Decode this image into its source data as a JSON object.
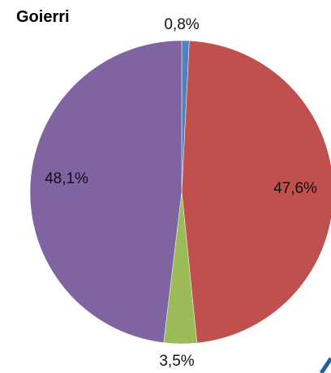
{
  "chart_data": {
    "type": "pie",
    "title": "Goierri",
    "slices": [
      {
        "label": "0,8%",
        "value": 0.8,
        "color": "#4F81BD"
      },
      {
        "label": "47,6%",
        "value": 47.6,
        "color": "#C0504D"
      },
      {
        "label": "3,5%",
        "value": 3.5,
        "color": "#9BBB59"
      },
      {
        "label": "48,1%",
        "value": 48.1,
        "color": "#8064A2"
      }
    ],
    "start_angle_deg": 0,
    "direction": "clockwise"
  }
}
